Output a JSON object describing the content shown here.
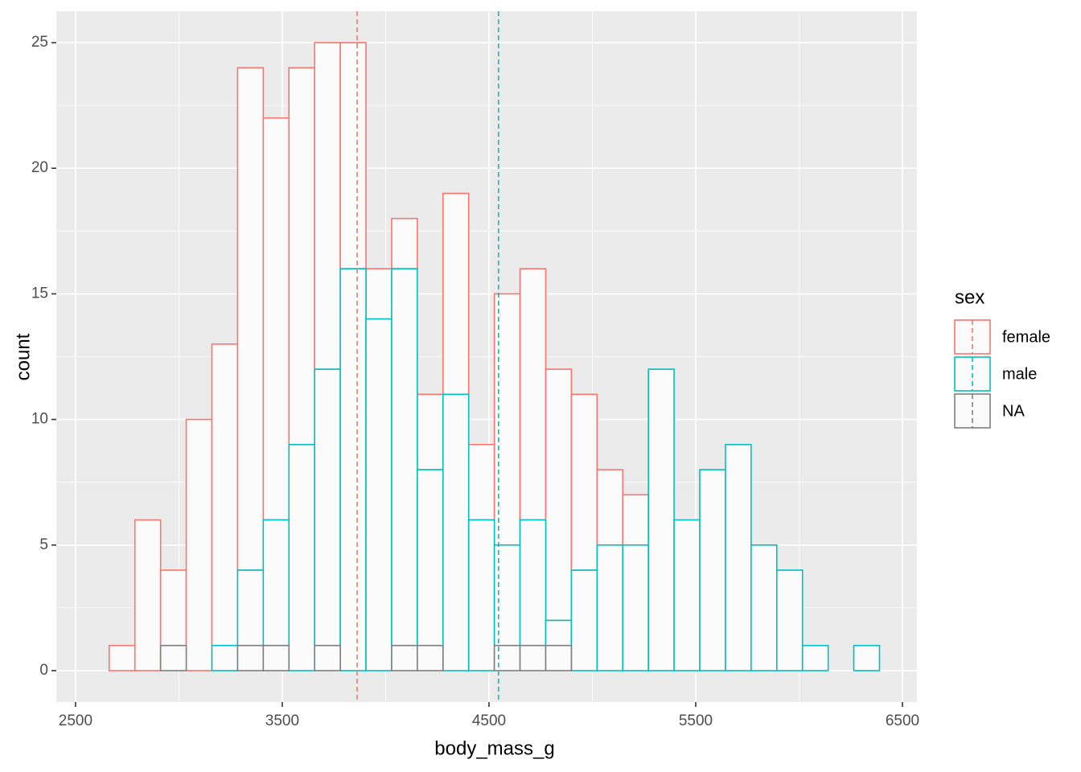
{
  "chart_data": {
    "type": "histogram",
    "x_label": "body_mass_g",
    "y_label": "count",
    "legend_title": "sex",
    "bins": [
      2663.0,
      2787.2,
      2911.4,
      3035.6,
      3159.8,
      3284.0,
      3408.2,
      3532.4,
      3656.6,
      3780.8,
      3905.0,
      4029.2,
      4153.4,
      4277.6,
      4401.8,
      4526.0,
      4650.2,
      4774.4,
      4898.6,
      5022.8,
      5147.0,
      5271.2,
      5395.4,
      5519.6,
      5643.8,
      5768.0,
      5892.2,
      6016.4,
      6140.6,
      6264.8,
      6389.0
    ],
    "series": [
      {
        "name": "female",
        "color": "#F8766D",
        "mean": 3862,
        "values": [
          1,
          6,
          3,
          10,
          12,
          20,
          16,
          15,
          13,
          9,
          2,
          2,
          3,
          8,
          3,
          10,
          10,
          10,
          7,
          3,
          2,
          0,
          0,
          0,
          0,
          0,
          0,
          0,
          0,
          0
        ]
      },
      {
        "name": "male",
        "color": "#00BFC4",
        "mean": 4546,
        "values": [
          0,
          0,
          0,
          0,
          1,
          3,
          5,
          9,
          11,
          16,
          14,
          15,
          7,
          11,
          6,
          4,
          5,
          1,
          4,
          5,
          5,
          12,
          6,
          8,
          9,
          5,
          4,
          1,
          0,
          1
        ]
      },
      {
        "name": "NA",
        "color": "#7F7F7F",
        "values": [
          0,
          0,
          1,
          0,
          0,
          1,
          1,
          0,
          1,
          0,
          0,
          1,
          1,
          0,
          0,
          1,
          1,
          1,
          0,
          0,
          0,
          0,
          0,
          0,
          0,
          0,
          0,
          0,
          0,
          0
        ]
      }
    ],
    "fill": "#FBFBFB",
    "xlim": [
      2407,
      6570
    ],
    "xticks": [
      2500,
      3500,
      4500,
      5500,
      6500
    ],
    "xminor": [
      3000,
      4000,
      5000,
      6000
    ],
    "ylim": [
      -1.25,
      26.25
    ],
    "yticks": [
      0,
      5,
      10,
      15,
      20,
      25
    ],
    "yminor": [
      2.5,
      7.5,
      12.5,
      17.5,
      22.5
    ],
    "grid": true
  }
}
